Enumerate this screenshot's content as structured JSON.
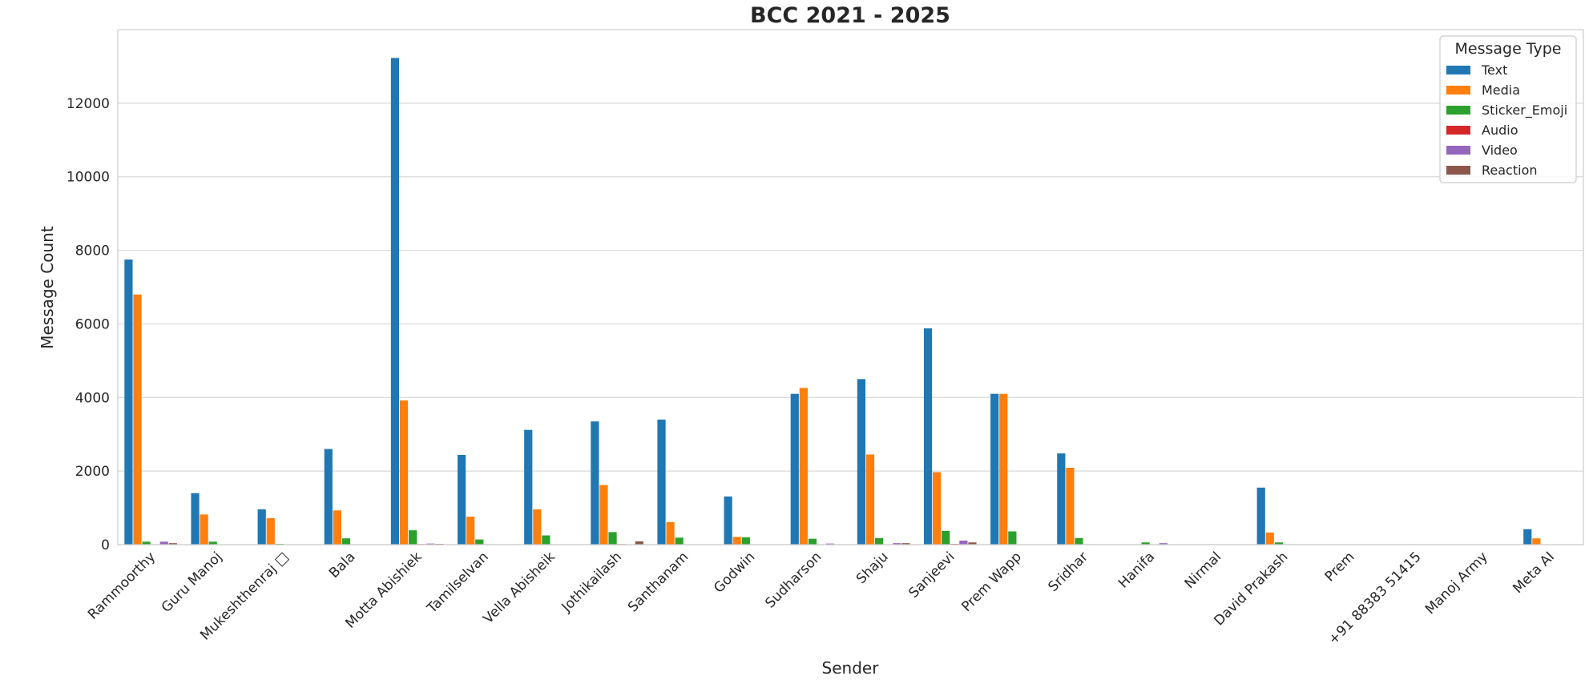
{
  "chart_data": {
    "type": "bar",
    "title": "BCC 2021 - 2025",
    "xlabel": "Sender",
    "ylabel": "Message Count",
    "ylim": [
      0,
      14000
    ],
    "yticks": [
      0,
      2000,
      4000,
      6000,
      8000,
      10000,
      12000
    ],
    "grid": true,
    "legend_title": "Message Type",
    "legend_position": "top-right",
    "categories": [
      "Rammoorthy",
      "Guru Manoj",
      "Mukeshthenraj □",
      "Bala",
      "Motta Abishiek",
      "Tamilselvan",
      "Vella Abisheik",
      "Jothikailash",
      "Santhanam",
      "Godwin",
      "Sudharson",
      "Shaju",
      "Sanjeevi",
      "Prem Wapp",
      "Sridhar",
      "Hanifa",
      "Nirmal",
      "David Prakash",
      "Prem",
      "+91 88383 51415",
      "Manoj Army",
      "Meta AI"
    ],
    "series": [
      {
        "name": "Text",
        "color": "#1f77b4",
        "values": [
          7750,
          1400,
          960,
          2600,
          13230,
          2440,
          3120,
          3350,
          3400,
          1310,
          4100,
          4500,
          5880,
          4100,
          2480,
          10,
          5,
          1550,
          0,
          0,
          0,
          420
        ]
      },
      {
        "name": "Media",
        "color": "#ff7f0e",
        "values": [
          6800,
          820,
          720,
          930,
          3920,
          760,
          960,
          1620,
          610,
          210,
          4260,
          2450,
          1970,
          4100,
          2090,
          10,
          0,
          330,
          0,
          0,
          0,
          170
        ]
      },
      {
        "name": "Sticker_Emoji",
        "color": "#2ca02c",
        "values": [
          80,
          80,
          20,
          170,
          390,
          140,
          250,
          340,
          190,
          200,
          160,
          180,
          370,
          360,
          180,
          60,
          0,
          60,
          0,
          0,
          0,
          0
        ]
      },
      {
        "name": "Audio",
        "color": "#d62728",
        "values": [
          10,
          5,
          0,
          5,
          15,
          5,
          10,
          15,
          10,
          0,
          10,
          10,
          20,
          10,
          5,
          0,
          0,
          5,
          0,
          0,
          0,
          0
        ]
      },
      {
        "name": "Video",
        "color": "#9467bd",
        "values": [
          80,
          0,
          0,
          0,
          30,
          0,
          0,
          0,
          0,
          0,
          30,
          40,
          110,
          0,
          0,
          40,
          0,
          0,
          0,
          0,
          0,
          0
        ]
      },
      {
        "name": "Reaction",
        "color": "#8c564b",
        "values": [
          40,
          0,
          0,
          0,
          20,
          0,
          0,
          90,
          0,
          0,
          0,
          40,
          60,
          0,
          0,
          0,
          0,
          0,
          0,
          0,
          0,
          0
        ]
      }
    ]
  }
}
